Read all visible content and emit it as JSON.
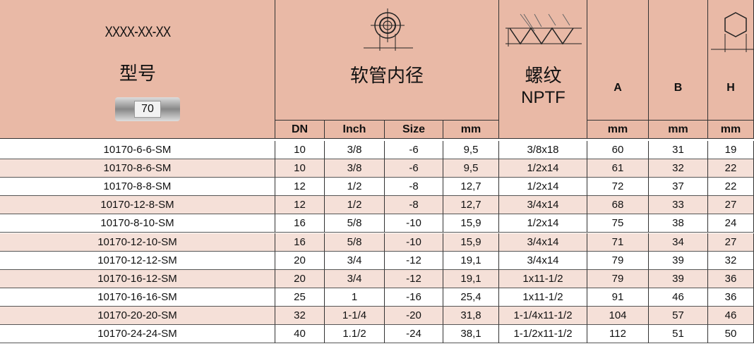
{
  "header": {
    "model_code": "XXXX-XX-XX",
    "model_label": "型号",
    "badge": "70",
    "hose_id": "软管内径",
    "thread": [
      "螺纹",
      "NPTF"
    ],
    "a": "A",
    "b": "B",
    "h": "H"
  },
  "subheader": [
    "DN",
    "Inch",
    "Size",
    "mm",
    "mm",
    "mm",
    "mm"
  ],
  "rows": [
    [
      "10170-6-6-SM",
      "10",
      "3/8",
      "-6",
      "9,5",
      "3/8x18",
      "60",
      "31",
      "19"
    ],
    [
      "10170-8-6-SM",
      "10",
      "3/8",
      "-6",
      "9,5",
      "1/2x14",
      "61",
      "32",
      "22"
    ],
    [
      "10170-8-8-SM",
      "12",
      "1/2",
      "-8",
      "12,7",
      "1/2x14",
      "72",
      "37",
      "22"
    ],
    [
      "10170-12-8-SM",
      "12",
      "1/2",
      "-8",
      "12,7",
      "3/4x14",
      "68",
      "33",
      "27"
    ],
    [
      "10170-8-10-SM",
      "16",
      "5/8",
      "-10",
      "15,9",
      "1/2x14",
      "75",
      "38",
      "24"
    ],
    [
      "10170-12-10-SM",
      "16",
      "5/8",
      "-10",
      "15,9",
      "3/4x14",
      "71",
      "34",
      "27"
    ],
    [
      "10170-12-12-SM",
      "20",
      "3/4",
      "-12",
      "19,1",
      "3/4x14",
      "79",
      "39",
      "32"
    ],
    [
      "10170-16-12-SM",
      "20",
      "3/4",
      "-12",
      "19,1",
      "1x11-1/2",
      "79",
      "39",
      "36"
    ],
    [
      "10170-16-16-SM",
      "25",
      "1",
      "-16",
      "25,4",
      "1x11-1/2",
      "91",
      "46",
      "36"
    ],
    [
      "10170-20-20-SM",
      "32",
      "1-1/4",
      "-20",
      "31,8",
      "1-1/4x11-1/2",
      "104",
      "57",
      "46"
    ],
    [
      "10170-24-24-SM",
      "40",
      "1.1/2",
      "-24",
      "38,1",
      "1-1/2x11-1/2",
      "112",
      "51",
      "50"
    ]
  ]
}
